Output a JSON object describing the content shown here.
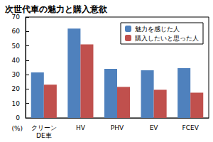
{
  "chart_data": {
    "type": "bar",
    "title": "次世代車の魅力と購入意欲",
    "categories": [
      "クリーンDE車",
      "HV",
      "PHV",
      "EV",
      "FCEV"
    ],
    "series": [
      {
        "name": "魅力を感じた人",
        "color": "#4f81bd",
        "values": [
          31.5,
          62,
          34,
          33,
          34.5
        ]
      },
      {
        "name": "購入したいと思った人",
        "color": "#c0504d",
        "values": [
          23,
          51,
          21.5,
          19.5,
          17.5
        ]
      }
    ],
    "ylabel": "(%)",
    "ylim": [
      0,
      70
    ],
    "yticks": [
      0,
      10,
      20,
      30,
      40,
      50,
      60,
      70
    ],
    "grid": false,
    "legend": "upper right"
  }
}
